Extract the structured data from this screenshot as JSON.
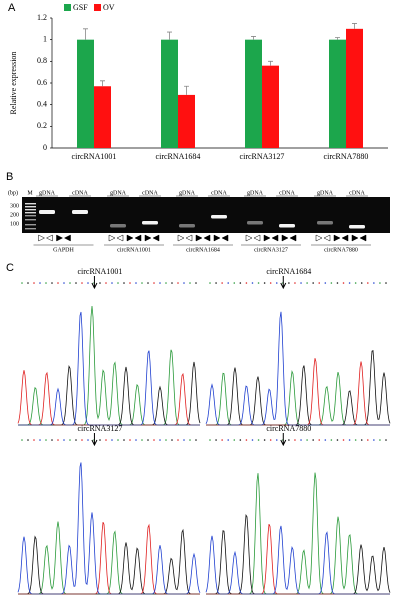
{
  "chart_data": {
    "type": "bar",
    "panel": "A",
    "y_label": "Relative expression",
    "categories": [
      "circRNA1001",
      "circRNA1684",
      "circRNA3127",
      "circRNA7880"
    ],
    "series": [
      {
        "name": "GSF",
        "color": "#1ca64c",
        "values": [
          1,
          1,
          1,
          1
        ],
        "errors": [
          0.1,
          0.07,
          0.03,
          0.02
        ]
      },
      {
        "name": "OV",
        "color": "#ff1010",
        "values": [
          0.57,
          0.49,
          0.76,
          1.1
        ],
        "errors": [
          0.05,
          0.08,
          0.04,
          0.05
        ]
      }
    ],
    "ylim": [
      0,
      1.2
    ],
    "yticks": [
      0,
      0.2,
      0.4,
      0.6,
      0.8,
      1,
      1.2
    ],
    "grid": false,
    "legend": "top-left"
  },
  "gel": {
    "panel": "B",
    "unit": "(bp)",
    "marker": "M",
    "marker_sizes": [
      "300",
      "200",
      "100"
    ],
    "lanes": [
      "gDNA",
      "cDNA"
    ],
    "genes": [
      "GAPDH",
      "circRNA1001",
      "circRNA1684",
      "circRNA3127",
      "circRNA7880"
    ]
  },
  "chromatograms": {
    "panel": "C",
    "labels": [
      "circRNA1001",
      "circRNA1684",
      "circRNA3127",
      "circRNA7880"
    ]
  }
}
